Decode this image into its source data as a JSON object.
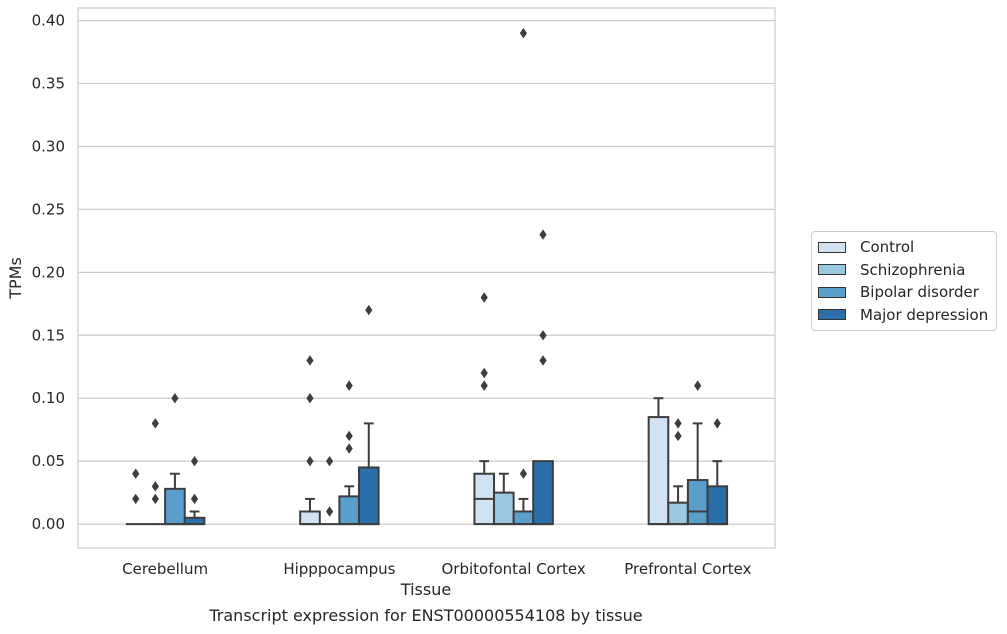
{
  "caption": "Transcript expression for ENST00000554108 by tissue",
  "chart_data": {
    "type": "box",
    "xlabel": "Tissue",
    "ylabel": "TPMs",
    "ylim": [
      -0.019,
      0.41
    ],
    "yticks": [
      0.0,
      0.05,
      0.1,
      0.15,
      0.2,
      0.25,
      0.3,
      0.35,
      0.4
    ],
    "ytick_labels": [
      "0.00",
      "0.05",
      "0.10",
      "0.15",
      "0.20",
      "0.25",
      "0.30",
      "0.35",
      "0.40"
    ],
    "grid": "horizontal",
    "legend_position": "outside-right",
    "categories": [
      "Cerebellum",
      "Hipppocampus",
      "Orbitofontal Cortex",
      "Prefrontal Cortex"
    ],
    "series": [
      {
        "name": "Control",
        "color": "#d1e3f2",
        "boxes": [
          {
            "q1": 0.0,
            "median": 0.0,
            "q3": 0.0,
            "whisker_low": 0.0,
            "whisker_high": 0.0,
            "outliers": [
              0.02,
              0.04
            ]
          },
          {
            "q1": 0.0,
            "median": 0.0,
            "q3": 0.01,
            "whisker_low": 0.0,
            "whisker_high": 0.02,
            "outliers": [
              0.05,
              0.1,
              0.13
            ]
          },
          {
            "q1": 0.0,
            "median": 0.02,
            "q3": 0.04,
            "whisker_low": 0.0,
            "whisker_high": 0.05,
            "outliers": [
              0.11,
              0.12,
              0.18
            ]
          },
          {
            "q1": 0.0,
            "median": 0.0,
            "q3": 0.085,
            "whisker_low": 0.0,
            "whisker_high": 0.1,
            "outliers": []
          }
        ]
      },
      {
        "name": "Schizophrenia",
        "color": "#9ac8e0",
        "boxes": [
          {
            "q1": 0.0,
            "median": 0.0,
            "q3": 0.0,
            "whisker_low": 0.0,
            "whisker_high": 0.0,
            "outliers": [
              0.02,
              0.03,
              0.08
            ]
          },
          {
            "q1": 0.0,
            "median": 0.0,
            "q3": 0.0,
            "whisker_low": 0.0,
            "whisker_high": 0.0,
            "outliers": [
              0.01,
              0.05
            ]
          },
          {
            "q1": 0.0,
            "median": 0.0,
            "q3": 0.025,
            "whisker_low": 0.0,
            "whisker_high": 0.04,
            "outliers": []
          },
          {
            "q1": 0.0,
            "median": 0.0,
            "q3": 0.017,
            "whisker_low": 0.0,
            "whisker_high": 0.03,
            "outliers": [
              0.07,
              0.08
            ]
          }
        ]
      },
      {
        "name": "Bipolar disorder",
        "color": "#5a9ecb",
        "boxes": [
          {
            "q1": 0.0,
            "median": 0.0,
            "q3": 0.028,
            "whisker_low": 0.0,
            "whisker_high": 0.04,
            "outliers": [
              0.1
            ]
          },
          {
            "q1": 0.0,
            "median": 0.0,
            "q3": 0.022,
            "whisker_low": 0.0,
            "whisker_high": 0.03,
            "outliers": [
              0.06,
              0.07,
              0.11
            ]
          },
          {
            "q1": 0.0,
            "median": 0.0,
            "q3": 0.01,
            "whisker_low": 0.0,
            "whisker_high": 0.02,
            "outliers": [
              0.04,
              0.39
            ]
          },
          {
            "q1": 0.0,
            "median": 0.01,
            "q3": 0.035,
            "whisker_low": 0.0,
            "whisker_high": 0.08,
            "outliers": [
              0.11
            ]
          }
        ]
      },
      {
        "name": "Major depression",
        "color": "#2b6ea8",
        "boxes": [
          {
            "q1": 0.0,
            "median": 0.0,
            "q3": 0.005,
            "whisker_low": 0.0,
            "whisker_high": 0.01,
            "outliers": [
              0.02,
              0.05
            ]
          },
          {
            "q1": 0.0,
            "median": 0.0,
            "q3": 0.045,
            "whisker_low": 0.0,
            "whisker_high": 0.08,
            "outliers": [
              0.17
            ]
          },
          {
            "q1": 0.0,
            "median": 0.0,
            "q3": 0.05,
            "whisker_low": 0.0,
            "whisker_high": 0.05,
            "outliers": [
              0.13,
              0.15,
              0.23
            ]
          },
          {
            "q1": 0.0,
            "median": 0.0,
            "q3": 0.03,
            "whisker_low": 0.0,
            "whisker_high": 0.05,
            "outliers": [
              0.08
            ]
          }
        ]
      }
    ]
  }
}
